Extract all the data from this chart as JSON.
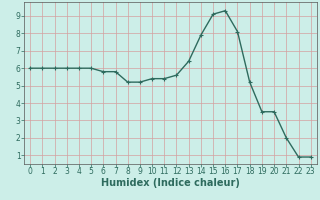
{
  "x": [
    0,
    1,
    2,
    3,
    4,
    5,
    6,
    7,
    8,
    9,
    10,
    11,
    12,
    13,
    14,
    15,
    16,
    17,
    18,
    19,
    20,
    21,
    22,
    23
  ],
  "y": [
    6.0,
    6.0,
    6.0,
    6.0,
    6.0,
    6.0,
    5.8,
    5.8,
    5.2,
    5.2,
    5.4,
    5.4,
    5.6,
    6.4,
    7.9,
    9.1,
    9.3,
    8.1,
    5.2,
    3.5,
    3.5,
    2.0,
    0.9,
    0.9
  ],
  "line_color": "#2e6b5e",
  "marker": "+",
  "marker_size": 3,
  "xlabel": "Humidex (Indice chaleur)",
  "xlabel_fontsize": 7,
  "bg_color": "#cceee8",
  "grid_color": "#d4a0a0",
  "xlim": [
    -0.5,
    23.5
  ],
  "ylim": [
    0.5,
    9.8
  ],
  "yticks": [
    1,
    2,
    3,
    4,
    5,
    6,
    7,
    8,
    9
  ],
  "xticks": [
    0,
    1,
    2,
    3,
    4,
    5,
    6,
    7,
    8,
    9,
    10,
    11,
    12,
    13,
    14,
    15,
    16,
    17,
    18,
    19,
    20,
    21,
    22,
    23
  ],
  "tick_fontsize": 5.5,
  "linewidth": 1.0,
  "markeredgewidth": 0.8
}
